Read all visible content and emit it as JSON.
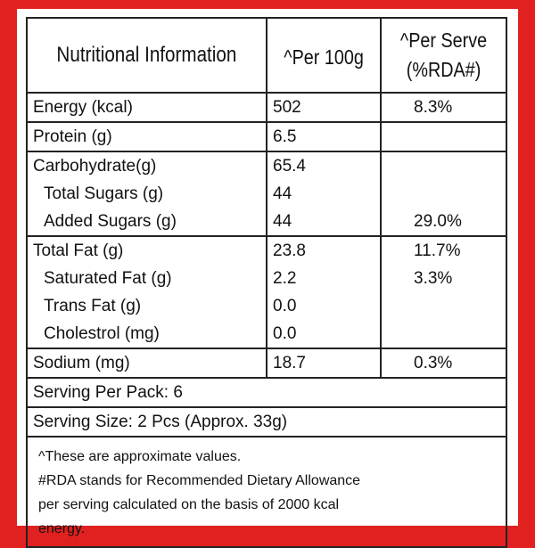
{
  "header": {
    "title": "Nutritional Information",
    "per_100g": "^Per 100g",
    "per_serve_line1": "^Per Serve",
    "per_serve_line2": "(%RDA#)"
  },
  "groups": [
    {
      "rows": [
        {
          "label": "Energy (kcal)",
          "per100": "502",
          "rda": "8.3%"
        }
      ]
    },
    {
      "rows": [
        {
          "label": "Protein (g)",
          "per100": "6.5",
          "rda": ""
        }
      ]
    },
    {
      "rows": [
        {
          "label": "Carbohydrate(g)",
          "per100": "65.4",
          "rda": ""
        },
        {
          "label": "Total Sugars  (g)",
          "per100": "44",
          "rda": ""
        },
        {
          "label": "Added Sugars (g)",
          "per100": "44",
          "rda": "29.0%"
        }
      ]
    },
    {
      "rows": [
        {
          "label": "Total Fat (g)",
          "per100": "23.8",
          "rda": "11.7%"
        },
        {
          "label": "Saturated Fat (g)",
          "per100": "2.2",
          "rda": "3.3%"
        },
        {
          "label": "Trans Fat (g)",
          "per100": "0.0",
          "rda": ""
        },
        {
          "label": "Cholestrol (mg)",
          "per100": "0.0",
          "rda": ""
        }
      ]
    },
    {
      "rows": [
        {
          "label": "Sodium (mg)",
          "per100": "18.7",
          "rda": "0.3%"
        }
      ]
    }
  ],
  "serving_per_pack": "Serving Per Pack: 6",
  "serving_size": "Serving Size: 2 Pcs (Approx. 33g)",
  "notes": [
    "^These are approximate values.",
    "#RDA stands for Recommended Dietary Allowance",
    "per serving calculated on the basis of 2000 kcal",
    "energy."
  ],
  "colors": {
    "border_red": "#e0211f",
    "background": "#ffffff",
    "text": "#111111"
  }
}
